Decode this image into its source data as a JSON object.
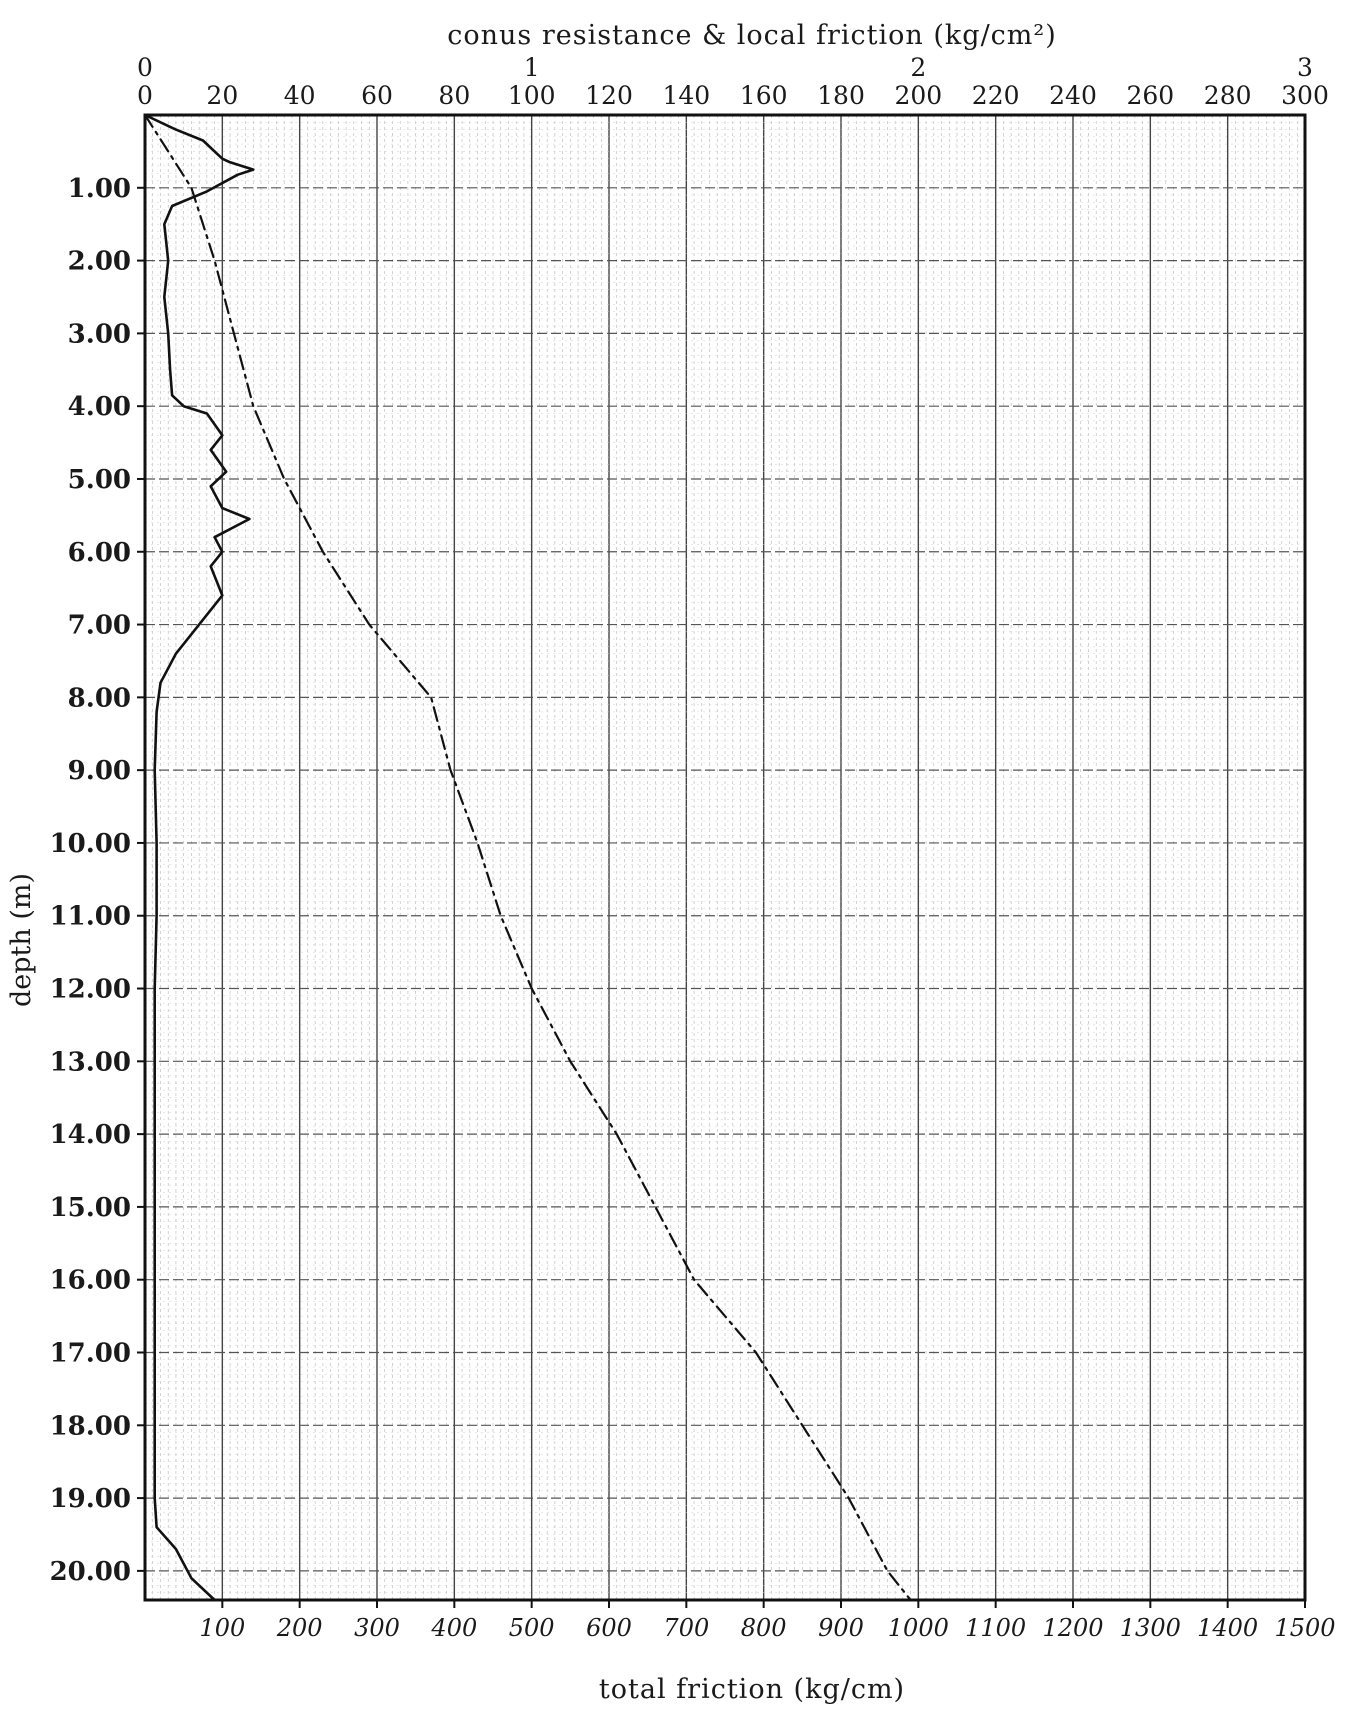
{
  "chart_data": {
    "type": "line",
    "title": "",
    "top_axis": {
      "label": "conus resistance & local friction (kg/cm²)",
      "range": [
        0,
        300
      ],
      "ticks": [
        0,
        20,
        40,
        60,
        80,
        100,
        120,
        140,
        160,
        180,
        200,
        220,
        240,
        260,
        280,
        300
      ],
      "tick_labels": [
        "0",
        "20",
        "40",
        "60",
        "80",
        "100",
        "120",
        "140",
        "160",
        "180",
        "200",
        "220",
        "240",
        "260",
        "280",
        "300"
      ],
      "secondary_scale": {
        "range": [
          0,
          3
        ],
        "ticks": [
          0,
          1,
          2,
          3
        ],
        "tick_labels": [
          "0",
          "1",
          "2",
          "3"
        ]
      }
    },
    "bottom_axis": {
      "label": "total friction (kg/cm)",
      "range": [
        0,
        1500
      ],
      "ticks": [
        100,
        200,
        300,
        400,
        500,
        600,
        700,
        800,
        900,
        1000,
        1100,
        1200,
        1300,
        1400,
        1500
      ],
      "tick_labels": [
        "100",
        "200",
        "300",
        "400",
        "500",
        "600",
        "700",
        "800",
        "900",
        "1000",
        "1100",
        "1200",
        "1300",
        "1400",
        "1500"
      ]
    },
    "y_axis": {
      "label": "depth (m)",
      "range": [
        0,
        20.4
      ],
      "inverted": true,
      "ticks": [
        1,
        2,
        3,
        4,
        5,
        6,
        7,
        8,
        9,
        10,
        11,
        12,
        13,
        14,
        15,
        16,
        17,
        18,
        19,
        20
      ],
      "tick_labels": [
        "1.00",
        "2.00",
        "3.00",
        "4.00",
        "5.00",
        "6.00",
        "7.00",
        "8.00",
        "9.00",
        "10.00",
        "11.00",
        "12.00",
        "13.00",
        "14.00",
        "15.00",
        "16.00",
        "17.00",
        "18.00",
        "19.00",
        "20.00"
      ]
    },
    "grid": true,
    "series": [
      {
        "kind": "conus_resistance",
        "axis": "top",
        "style": "solid",
        "points": [
          [
            0,
            0
          ],
          [
            8,
            0.2
          ],
          [
            15,
            0.35
          ],
          [
            20,
            0.6
          ],
          [
            22,
            0.65
          ],
          [
            28,
            0.75
          ],
          [
            24,
            0.82
          ],
          [
            16,
            1.05
          ],
          [
            7,
            1.25
          ],
          [
            5,
            1.5
          ],
          [
            6,
            2.0
          ],
          [
            5,
            2.5
          ],
          [
            6,
            3.0
          ],
          [
            6.5,
            3.5
          ],
          [
            7,
            3.85
          ],
          [
            10,
            4.0
          ],
          [
            16,
            4.1
          ],
          [
            20,
            4.4
          ],
          [
            17,
            4.6
          ],
          [
            21,
            4.9
          ],
          [
            17,
            5.1
          ],
          [
            20,
            5.4
          ],
          [
            27,
            5.55
          ],
          [
            18,
            5.8
          ],
          [
            20,
            6.0
          ],
          [
            17,
            6.2
          ],
          [
            20,
            6.6
          ],
          [
            14,
            7.0
          ],
          [
            8,
            7.4
          ],
          [
            4,
            7.8
          ],
          [
            3,
            8.2
          ],
          [
            2.5,
            9.0
          ],
          [
            3,
            10.0
          ],
          [
            3,
            11.0
          ],
          [
            2.5,
            12.0
          ],
          [
            2.5,
            13.0
          ],
          [
            2.5,
            14.0
          ],
          [
            2.5,
            15.0
          ],
          [
            2.5,
            16.0
          ],
          [
            2.5,
            17.0
          ],
          [
            2.5,
            18.0
          ],
          [
            2.5,
            19.0
          ],
          [
            3,
            19.4
          ],
          [
            8,
            19.7
          ],
          [
            12,
            20.1
          ],
          [
            18,
            20.4
          ]
        ]
      },
      {
        "kind": "total_friction",
        "axis": "bottom",
        "style": "dash-dot",
        "points": [
          [
            0,
            0
          ],
          [
            30,
            0.5
          ],
          [
            60,
            1.0
          ],
          [
            90,
            2.0
          ],
          [
            115,
            3.0
          ],
          [
            140,
            4.0
          ],
          [
            180,
            5.0
          ],
          [
            230,
            6.0
          ],
          [
            290,
            7.0
          ],
          [
            370,
            8.0
          ],
          [
            395,
            9.0
          ],
          [
            430,
            10.0
          ],
          [
            460,
            11.0
          ],
          [
            500,
            12.0
          ],
          [
            550,
            13.0
          ],
          [
            610,
            14.0
          ],
          [
            660,
            15.0
          ],
          [
            710,
            16.0
          ],
          [
            790,
            17.0
          ],
          [
            850,
            18.0
          ],
          [
            910,
            19.0
          ],
          [
            960,
            20.0
          ],
          [
            990,
            20.4
          ]
        ]
      }
    ]
  }
}
